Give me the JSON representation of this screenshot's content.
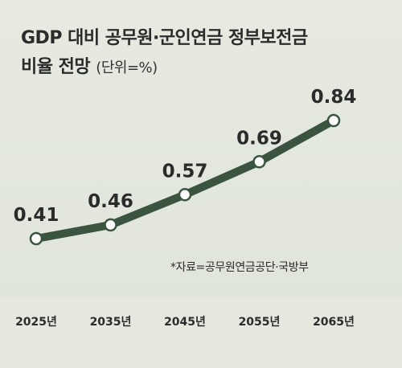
{
  "title": {
    "line1": "GDP 대비 공무원·군인연금 정부보전금",
    "line2_main": "비율 전망",
    "line2_unit": "(단위=%)"
  },
  "source": "*자료=공무원연금공단·국방부",
  "colors": {
    "line": "#3a5440",
    "marker_fill": "#ffffff",
    "text": "#2b2b2b"
  },
  "chart_data": {
    "type": "line",
    "title": "GDP 대비 공무원·군인연금 정부보전금 비율 전망",
    "ylabel": "(단위=%)",
    "categories": [
      "2025년",
      "2035년",
      "2045년",
      "2055년",
      "2065년"
    ],
    "series": [
      {
        "values": [
          0.41,
          0.46,
          0.57,
          0.69,
          0.84
        ]
      }
    ],
    "data_labels": [
      "0.41",
      "0.46",
      "0.57",
      "0.69",
      "0.84"
    ],
    "ylim": [
      0.41,
      0.84
    ],
    "grid": false,
    "legend": "none"
  }
}
